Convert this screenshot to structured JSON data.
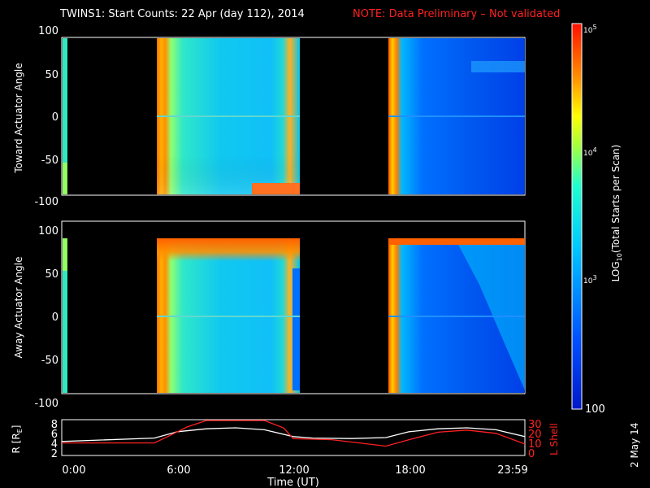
{
  "header": {
    "title": "TWINS1: Start Counts: 22 Apr (day 112), 2014",
    "note": "NOTE: Data Preliminary – Not validated",
    "note_color": "#ff2020"
  },
  "date_stamp": "2 May 14",
  "chart_data": [
    {
      "type": "heatmap",
      "panel": "toward",
      "ylabel": "Toward Actuator Angle",
      "ylim": [
        -100,
        100
      ],
      "yticks": [
        "100",
        "50",
        "0",
        "-50",
        "-100"
      ],
      "xlim_hours": [
        0,
        24
      ],
      "data_blocks": [
        {
          "start_hour": 0,
          "end_hour": 0.1,
          "level": "cyan-green"
        },
        {
          "start_hour": 4.9,
          "end_hour": 12.3,
          "level": "orange edge, cyan body"
        },
        {
          "start_hour": 16.9,
          "end_hour": 24,
          "level": "orange edge, blue body"
        }
      ]
    },
    {
      "type": "heatmap",
      "panel": "away",
      "ylabel": "Away Actuator Angle",
      "ylim": [
        -100,
        100
      ],
      "yticks": [
        "100",
        "50",
        "0",
        "-50",
        "-100"
      ],
      "xlim_hours": [
        0,
        24
      ],
      "data_blocks": [
        {
          "start_hour": 0,
          "end_hour": 0.1,
          "level": "green"
        },
        {
          "start_hour": 4.9,
          "end_hour": 12.3,
          "level": "orange edge/top, cyan body"
        },
        {
          "start_hour": 16.9,
          "end_hour": 24,
          "level": "orange top, blue body"
        }
      ]
    },
    {
      "type": "line",
      "panel": "orbit",
      "ylabel_left": "R [R",
      "ylabel_left_sub": "E",
      "ylabel_left_close": "]",
      "yticks_left": [
        "8",
        "6",
        "4",
        "2"
      ],
      "ylabel_right": "L Shell",
      "yticks_right": [
        "30",
        "20",
        "10",
        "0"
      ],
      "xlabel": "Time (UT)",
      "xticks": [
        "0:00",
        "6:00",
        "12:00",
        "18:00",
        "23:59"
      ],
      "series": [
        {
          "color": "#ffffff",
          "x": [
            0,
            4.8,
            6,
            7.5,
            9,
            10.5,
            12,
            13,
            15,
            16.8,
            18,
            19.5,
            21,
            22.5,
            24
          ],
          "y": [
            4.2,
            4.9,
            6.2,
            6.8,
            7.0,
            6.6,
            5.2,
            4.9,
            4.8,
            5.0,
            6.2,
            6.8,
            7.0,
            6.6,
            5.2
          ]
        },
        {
          "color": "#ff2020",
          "x": [
            0,
            4.8,
            5.5,
            6.5,
            7.5,
            10.5,
            11.5,
            12,
            14,
            16.8,
            18,
            19.5,
            21,
            22.5,
            24
          ],
          "y": [
            11,
            11,
            17,
            26,
            33,
            33,
            25,
            15,
            14,
            8,
            14,
            21,
            23,
            20,
            10
          ]
        }
      ]
    }
  ],
  "colorbar": {
    "label": "LOG",
    "label_sub": "10",
    "label_rest": "(Total Starts per Scan)",
    "ticks": [
      "10",
      "10",
      "10"
    ],
    "tick_exps": [
      "5",
      "4",
      "3"
    ],
    "bottom_label": "100"
  }
}
